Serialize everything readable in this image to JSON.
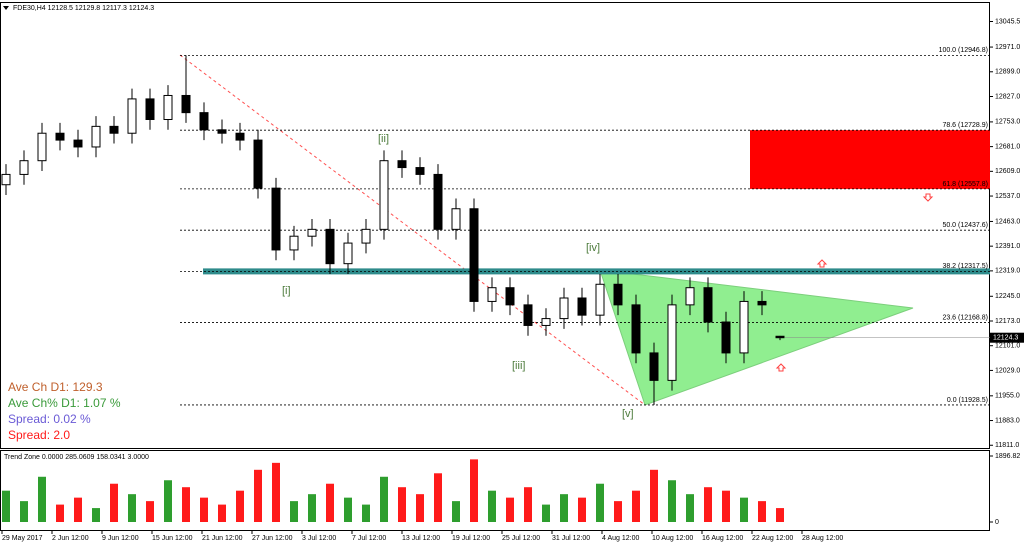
{
  "chart_data": {
    "type": "candlestick",
    "title": "FDE30,H4  12128.5 12129.8 12117.3 12124.3",
    "last_price": 12124.3,
    "up_color": "#ffffff",
    "down_color": "#000000",
    "ylim": [
      11803,
      13079
    ],
    "yticks": [
      13045.5,
      {
        "value": 12971,
        "label": "12971.0"
      },
      {
        "value": 12899,
        "label": "12899.0"
      },
      {
        "value": 12827,
        "label": "12827.0"
      },
      {
        "value": 12753,
        "label": "12753.0"
      },
      {
        "value": 12681,
        "label": "12681.0"
      },
      {
        "value": 12609,
        "label": "12609.0"
      },
      {
        "value": 12537,
        "label": "12537.0"
      },
      {
        "value": 12463,
        "label": "12463.0"
      },
      {
        "value": 12391,
        "label": "12391.0"
      },
      {
        "value": 12319,
        "label": "12319.0"
      },
      {
        "value": 12245,
        "label": "12245.0"
      },
      {
        "value": 12173,
        "label": "12173.0"
      },
      {
        "value": 12101,
        "label": "12101.0"
      },
      {
        "value": 12029,
        "label": "12029.0"
      },
      {
        "value": 11955,
        "label": "11955.0"
      },
      {
        "value": 11883,
        "label": "11883.0"
      },
      {
        "value": 11811,
        "label": "11811.0"
      }
    ],
    "categories": [
      "29 May 2017",
      "2 Jun 12:00",
      "9 Jun 12:00",
      "15 Jun 12:00",
      "21 Jun 12:00",
      "27 Jun 12:00",
      "3 Jul 12:00",
      "7 Jul 12:00",
      "13 Jul 12:00",
      "19 Jul 12:00",
      "25 Jul 12:00",
      "31 Jul 12:00",
      "4 Aug 12:00",
      "10 Aug 12:00",
      "16 Aug 12:00",
      "22 Aug 12:00",
      "28 Aug 12:00"
    ],
    "open": [
      12570,
      12600,
      12640,
      12720,
      12700,
      12680,
      12740,
      12720,
      12820,
      12760,
      12830,
      12780,
      12730,
      12720,
      12700,
      12560,
      12380,
      12420,
      12440,
      12340,
      12400,
      12440,
      12640,
      12620,
      12600,
      12440,
      12500,
      12230,
      12270,
      12220,
      12160,
      12180,
      12240,
      12190,
      12280,
      12220,
      12080,
      12000,
      12220,
      12270,
      12170,
      12080,
      12230,
      12128.5
    ],
    "high": [
      12630,
      12670,
      12750,
      12750,
      12730,
      12770,
      12770,
      12850,
      12850,
      12860,
      12946.8,
      12810,
      12760,
      12750,
      12730,
      12590,
      12450,
      12470,
      12470,
      12430,
      12470,
      12670,
      12670,
      12650,
      12630,
      12530,
      12530,
      12300,
      12300,
      12250,
      12210,
      12270,
      12270,
      12310,
      12310,
      12250,
      12110,
      12250,
      12300,
      12300,
      12200,
      12260,
      12260,
      12129.8
    ],
    "low": [
      12540,
      12570,
      12610,
      12670,
      12650,
      12650,
      12690,
      12690,
      12730,
      12730,
      12750,
      12700,
      12690,
      12670,
      12530,
      12350,
      12350,
      12390,
      12310,
      12310,
      12370,
      12410,
      12590,
      12570,
      12410,
      12410,
      12200,
      12200,
      12190,
      12130,
      12130,
      12150,
      12160,
      12160,
      12190,
      12050,
      11928.5,
      11970,
      12190,
      12140,
      12050,
      12050,
      12190,
      12117.3
    ],
    "close": [
      12600,
      12640,
      12720,
      12700,
      12680,
      12740,
      12720,
      12820,
      12760,
      12830,
      12780,
      12730,
      12720,
      12700,
      12560,
      12380,
      12420,
      12440,
      12340,
      12400,
      12440,
      12640,
      12620,
      12600,
      12440,
      12500,
      12230,
      12270,
      12220,
      12160,
      12180,
      12240,
      12190,
      12280,
      12220,
      12080,
      12000,
      12220,
      12270,
      12170,
      12080,
      12230,
      12220,
      12124.3
    ],
    "fib_levels": [
      {
        "value": 12946.8,
        "label": "100.0 (12946.8)"
      },
      {
        "value": 12728.9,
        "label": "78.6 (12728.9)"
      },
      {
        "value": 12557.8,
        "label": "61.8 (12557.8)"
      },
      {
        "value": 12437.6,
        "label": "50.0 (12437.6)"
      },
      {
        "value": 12317.5,
        "label": "38.2 (12317.5)"
      },
      {
        "value": 12168.8,
        "label": "23.6 (12168.8)"
      },
      {
        "value": 11928.5,
        "label": "0.0 (11928.5)"
      }
    ],
    "waves": [
      "[i]",
      "[ii]",
      "[iii]",
      "[iv]",
      "[v]"
    ],
    "stats": [
      "Ave Ch D1: 129.3",
      "Ave Ch% D1: 1.07 %",
      "Spread: 0.02 %",
      "Spread: 2.0"
    ],
    "indicator": {
      "title": "Trend Zone 0.0000 285.0609 158.0341 3.0000",
      "up_color": "#2e9e2e",
      "down_color": "#ff1a1a",
      "ylim": [
        0,
        1896.82
      ],
      "yticks": [
        1896.82,
        0
      ],
      "values": [
        900,
        600,
        1300,
        500,
        700,
        400,
        1100,
        800,
        600,
        1200,
        1000,
        700,
        500,
        900,
        1500,
        1700,
        600,
        800,
        1100,
        700,
        500,
        1300,
        1000,
        800,
        1400,
        600,
        1800,
        900,
        700,
        1000,
        500,
        800,
        700,
        1100,
        600,
        900,
        1500,
        1200,
        800,
        1000,
        900,
        700,
        600,
        400
      ]
    }
  }
}
